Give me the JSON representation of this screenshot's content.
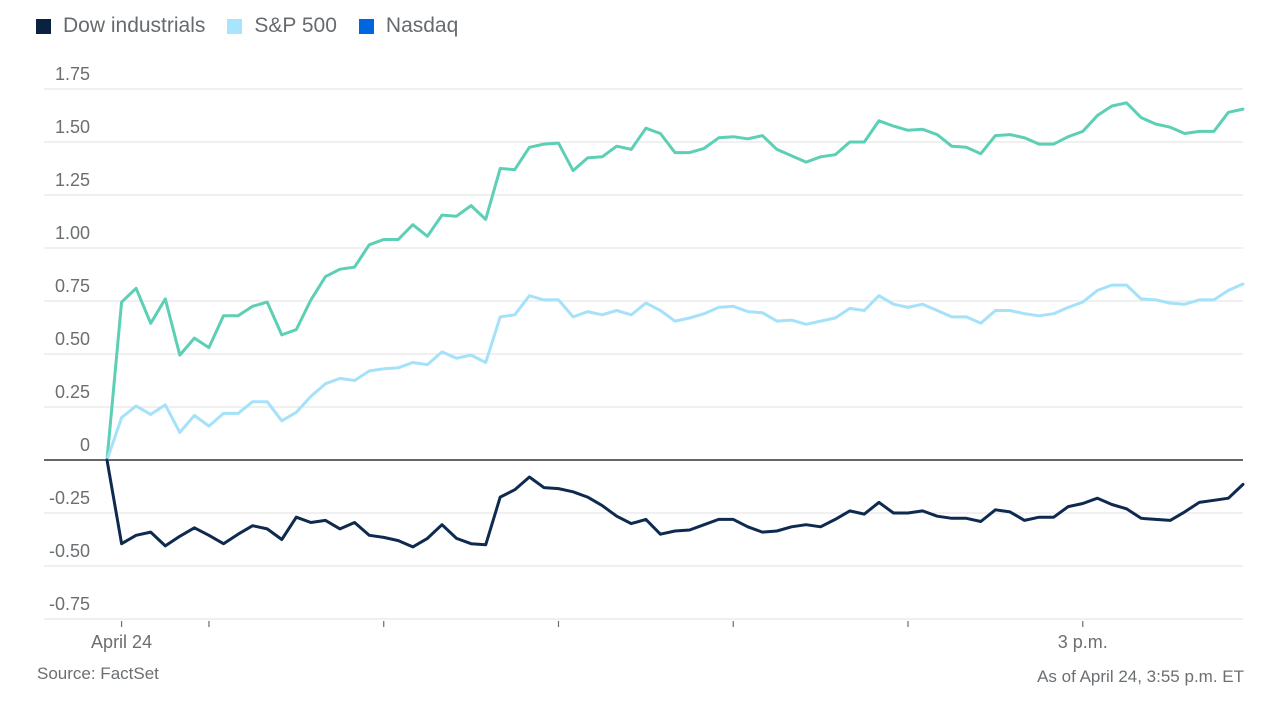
{
  "chart_data": {
    "type": "line",
    "title": "",
    "xlabel": "",
    "ylabel": "",
    "ylim": [
      -0.85,
      1.85
    ],
    "grid": true,
    "legend_position": "top-left",
    "y_ticks": [
      {
        "value": 1.75,
        "label": "1.75"
      },
      {
        "value": 1.5,
        "label": "1.50"
      },
      {
        "value": 1.25,
        "label": "1.25"
      },
      {
        "value": 1.0,
        "label": "1.00"
      },
      {
        "value": 0.75,
        "label": "0.75"
      },
      {
        "value": 0.5,
        "label": "0.50"
      },
      {
        "value": 0.25,
        "label": "0.25"
      },
      {
        "value": 0,
        "label": "0"
      },
      {
        "value": -0.25,
        "label": "-0.25"
      },
      {
        "value": -0.5,
        "label": "-0.50"
      },
      {
        "value": -0.75,
        "label": "-0.75"
      }
    ],
    "x_unit": "minutes after 9:25 a.m. ET (5-minute intervals)",
    "x_range": [
      0,
      390
    ],
    "x_ticks": [
      {
        "value": 5,
        "label": "April 24"
      },
      {
        "value": 35,
        "label": ""
      },
      {
        "value": 95,
        "label": ""
      },
      {
        "value": 155,
        "label": ""
      },
      {
        "value": 215,
        "label": ""
      },
      {
        "value": 275,
        "label": ""
      },
      {
        "value": 335,
        "label": "3 p.m."
      }
    ],
    "x_interval": 5,
    "series": [
      {
        "name": "Nasdaq",
        "legend_color": "#0066e0",
        "line_color": "#5ccfb5",
        "values": [
          0,
          0.745,
          0.81,
          0.645,
          0.76,
          0.495,
          0.575,
          0.53,
          0.68,
          0.68,
          0.725,
          0.745,
          0.59,
          0.615,
          0.755,
          0.865,
          0.9,
          0.91,
          1.015,
          1.04,
          1.04,
          1.11,
          1.055,
          1.155,
          1.15,
          1.2,
          1.135,
          1.375,
          1.37,
          1.475,
          1.49,
          1.495,
          1.365,
          1.425,
          1.43,
          1.48,
          1.465,
          1.565,
          1.54,
          1.45,
          1.45,
          1.47,
          1.52,
          1.525,
          1.515,
          1.53,
          1.465,
          1.435,
          1.405,
          1.43,
          1.44,
          1.5,
          1.5,
          1.6,
          1.575,
          1.555,
          1.56,
          1.535,
          1.48,
          1.475,
          1.445,
          1.53,
          1.535,
          1.52,
          1.49,
          1.49,
          1.525,
          1.55,
          1.625,
          1.67,
          1.685,
          1.615,
          1.585,
          1.57,
          1.54,
          1.55,
          1.55,
          1.64,
          1.655
        ]
      },
      {
        "name": "S&P 500",
        "legend_color": "#a8e4fc",
        "line_color": "#a5e2fa",
        "values": [
          0,
          0.2,
          0.255,
          0.215,
          0.26,
          0.13,
          0.21,
          0.16,
          0.22,
          0.22,
          0.275,
          0.275,
          0.185,
          0.225,
          0.3,
          0.36,
          0.385,
          0.375,
          0.42,
          0.43,
          0.435,
          0.46,
          0.45,
          0.51,
          0.48,
          0.495,
          0.46,
          0.675,
          0.685,
          0.775,
          0.755,
          0.755,
          0.675,
          0.7,
          0.685,
          0.705,
          0.685,
          0.74,
          0.705,
          0.655,
          0.67,
          0.69,
          0.72,
          0.725,
          0.7,
          0.695,
          0.655,
          0.66,
          0.64,
          0.655,
          0.67,
          0.715,
          0.705,
          0.775,
          0.735,
          0.72,
          0.735,
          0.705,
          0.675,
          0.675,
          0.645,
          0.705,
          0.705,
          0.69,
          0.68,
          0.69,
          0.72,
          0.745,
          0.8,
          0.825,
          0.825,
          0.76,
          0.755,
          0.74,
          0.735,
          0.755,
          0.755,
          0.8,
          0.83
        ]
      },
      {
        "name": "Dow industrials",
        "legend_color": "#0a2240",
        "line_color": "#0e2a4e",
        "values": [
          0,
          -0.395,
          -0.355,
          -0.34,
          -0.405,
          -0.36,
          -0.32,
          -0.355,
          -0.395,
          -0.35,
          -0.31,
          -0.325,
          -0.375,
          -0.27,
          -0.295,
          -0.285,
          -0.325,
          -0.295,
          -0.355,
          -0.365,
          -0.38,
          -0.41,
          -0.37,
          -0.305,
          -0.37,
          -0.395,
          -0.4,
          -0.175,
          -0.14,
          -0.08,
          -0.13,
          -0.135,
          -0.15,
          -0.175,
          -0.215,
          -0.265,
          -0.3,
          -0.28,
          -0.35,
          -0.335,
          -0.33,
          -0.305,
          -0.28,
          -0.28,
          -0.315,
          -0.34,
          -0.335,
          -0.315,
          -0.305,
          -0.315,
          -0.28,
          -0.24,
          -0.255,
          -0.2,
          -0.25,
          -0.25,
          -0.24,
          -0.265,
          -0.275,
          -0.275,
          -0.29,
          -0.235,
          -0.245,
          -0.285,
          -0.27,
          -0.27,
          -0.22,
          -0.205,
          -0.18,
          -0.21,
          -0.23,
          -0.275,
          -0.28,
          -0.285,
          -0.245,
          -0.2,
          -0.19,
          -0.18,
          -0.115
        ]
      }
    ],
    "legend": [
      {
        "name": "Dow industrials",
        "color": "#0a2240"
      },
      {
        "name": "S&P 500",
        "color": "#a8e4fc"
      },
      {
        "name": "Nasdaq",
        "color": "#0066e0"
      }
    ]
  },
  "footer": {
    "source": "Source: FactSet",
    "as_of": "As of April 24, 3:55 p.m. ET"
  }
}
